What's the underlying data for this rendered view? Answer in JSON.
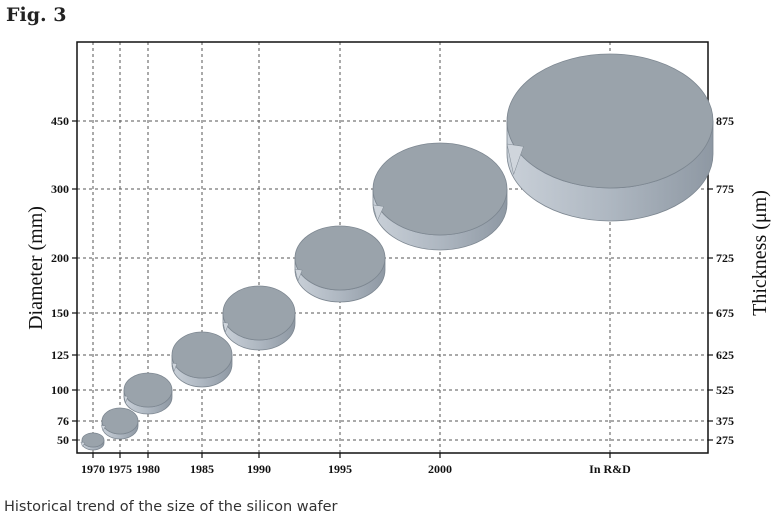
{
  "figure": {
    "label": "Fig. 3",
    "caption": "Historical trend of the size of the silicon wafer"
  },
  "chart_data": {
    "type": "bubble",
    "title": "",
    "xlabel": "",
    "ylabel_left": "Diameter (mm)",
    "ylabel_right": "Thickness (μm)",
    "grid": true,
    "x_tick_labels": [
      "1970",
      "1975",
      "1980",
      "1985",
      "1990",
      "1995",
      "2000",
      "In R&D"
    ],
    "y_left_tick_labels": [
      "50",
      "76",
      "100",
      "125",
      "150",
      "200",
      "300",
      "450"
    ],
    "y_right_tick_labels": [
      "275",
      "375",
      "525",
      "625",
      "675",
      "725",
      "775",
      "875"
    ],
    "series": [
      {
        "points": [
          {
            "year": "1970",
            "diameter_mm": 50,
            "thickness_um": 275
          },
          {
            "year": "1975",
            "diameter_mm": 76,
            "thickness_um": 375
          },
          {
            "year": "1980",
            "diameter_mm": 100,
            "thickness_um": 525
          },
          {
            "year": "1985",
            "diameter_mm": 125,
            "thickness_um": 625
          },
          {
            "year": "1990",
            "diameter_mm": 150,
            "thickness_um": 675
          },
          {
            "year": "1995",
            "diameter_mm": 200,
            "thickness_um": 725
          },
          {
            "year": "2000",
            "diameter_mm": 300,
            "thickness_um": 775
          },
          {
            "year": "In R&D",
            "diameter_mm": 450,
            "thickness_um": 875
          }
        ]
      }
    ],
    "colors": {
      "wafer_top": "#9aa3ab",
      "wafer_side": "#b9c1ca",
      "grid": "#555555"
    }
  }
}
